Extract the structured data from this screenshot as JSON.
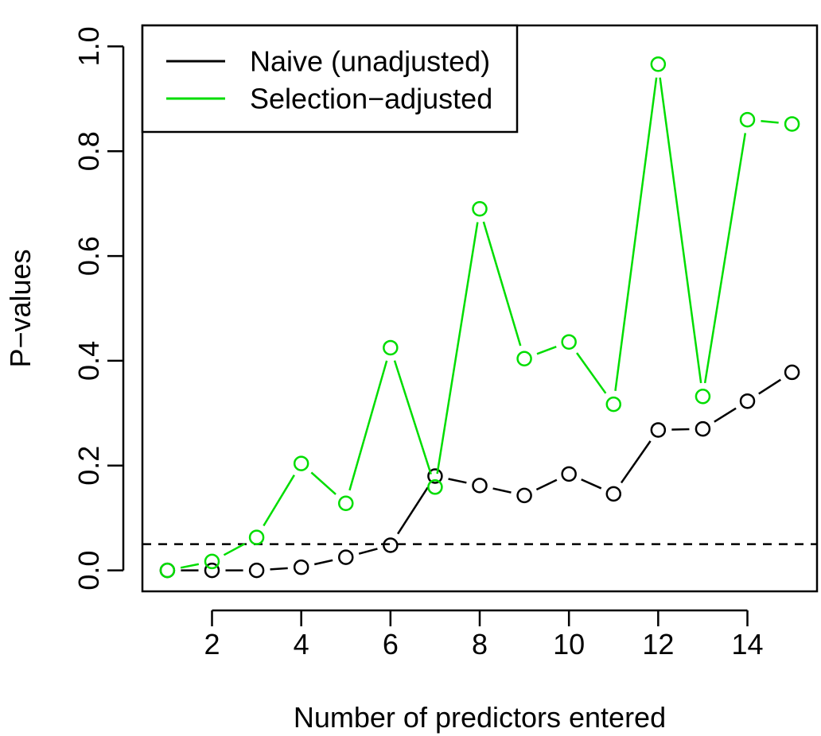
{
  "chart_data": {
    "type": "line",
    "title": "",
    "xlabel": "Number of predictors entered",
    "ylabel": "P−values",
    "xlim": [
      0.44,
      15.56
    ],
    "ylim": [
      -0.04,
      1.04
    ],
    "xticks": [
      2,
      4,
      6,
      8,
      10,
      12,
      14
    ],
    "yticks": [
      0.0,
      0.2,
      0.4,
      0.6,
      0.8,
      1.0
    ],
    "ytick_labels": [
      "0.0",
      "0.2",
      "0.4",
      "0.6",
      "0.8",
      "1.0"
    ],
    "grid": false,
    "legend_position": "top-left",
    "marker": "open-circle",
    "x": [
      1,
      2,
      3,
      4,
      5,
      6,
      7,
      8,
      9,
      10,
      11,
      12,
      13,
      14,
      15
    ],
    "series": [
      {
        "name": "Naive (unadjusted)",
        "color": "#000000",
        "values": [
          0.0,
          0.0,
          0.0,
          0.006,
          0.025,
          0.048,
          0.18,
          0.162,
          0.143,
          0.184,
          0.146,
          0.268,
          0.27,
          0.323,
          0.378
        ]
      },
      {
        "name": "Selection−adjusted",
        "color": "#00dd00",
        "values": [
          0.0,
          0.017,
          0.063,
          0.204,
          0.128,
          0.425,
          0.159,
          0.69,
          0.404,
          0.436,
          0.317,
          0.966,
          0.332,
          0.86,
          0.852
        ]
      }
    ],
    "reference_line": {
      "y": 0.05,
      "style": "dashed",
      "color": "#000000"
    }
  }
}
